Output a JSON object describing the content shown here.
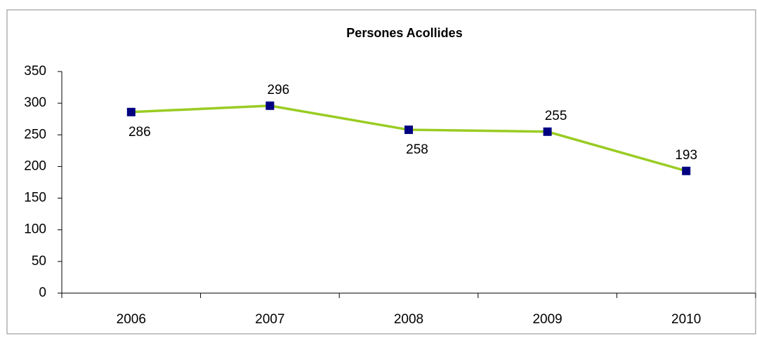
{
  "chart_data": {
    "type": "line",
    "title": "Persones Acollides",
    "categories": [
      "2006",
      "2007",
      "2008",
      "2009",
      "2010"
    ],
    "series": [
      {
        "name": "Persones Acollides",
        "color": "#99cc22",
        "marker_color": "#000080",
        "values": [
          286,
          296,
          258,
          255,
          193
        ]
      }
    ],
    "ylim": [
      0,
      350
    ],
    "yticks": [
      0,
      50,
      100,
      150,
      200,
      250,
      300,
      350
    ],
    "grid": false
  }
}
